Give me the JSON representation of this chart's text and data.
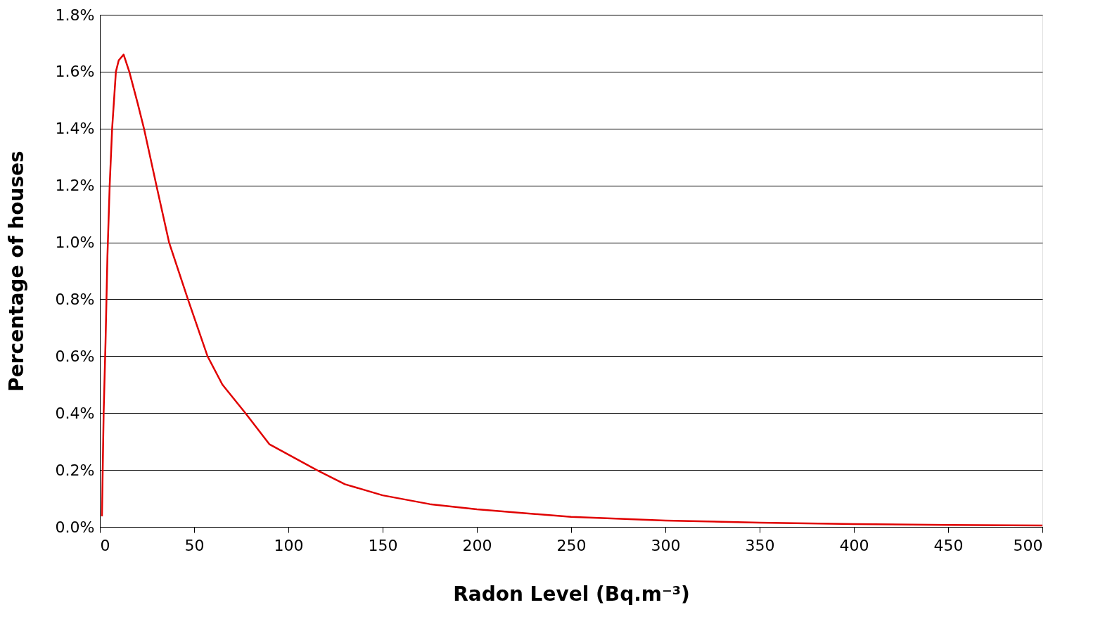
{
  "chart_data": {
    "type": "line",
    "xlabel": "Radon Level (Bq.m⁻³)",
    "ylabel": "Percentage of houses",
    "x": [
      1.1,
      1.5,
      2,
      3,
      4,
      5.2,
      6.5,
      8.5,
      10,
      12.6,
      15.6,
      20,
      23.4,
      30,
      36.7,
      46.7,
      57.1,
      65,
      77.2,
      90,
      115,
      130,
      150,
      175,
      200,
      250,
      300,
      350,
      400,
      450,
      500
    ],
    "series": [
      {
        "color": "#e00000",
        "values": [
          0.037,
          0.2,
          0.4,
          0.65,
          0.95,
          1.2,
          1.4,
          1.6,
          1.64,
          1.66,
          1.6,
          1.49,
          1.4,
          1.2,
          1.0,
          0.8,
          0.6,
          0.5,
          0.4,
          0.29,
          0.2,
          0.15,
          0.111,
          0.08,
          0.062,
          0.035,
          0.022,
          0.015,
          0.01,
          0.007,
          0.005
        ]
      }
    ],
    "xlim": [
      0,
      500
    ],
    "xticks": [
      0,
      50,
      100,
      150,
      200,
      250,
      300,
      350,
      400,
      450,
      500
    ],
    "ylim": [
      0,
      1.8
    ],
    "yticks": [
      {
        "value": 0,
        "label": "0.0%"
      },
      {
        "value": 0.2,
        "label": "0.2%"
      },
      {
        "value": 0.4,
        "label": "0.4%"
      },
      {
        "value": 0.6,
        "label": "0.6%"
      },
      {
        "value": 0.8,
        "label": "0.8%"
      },
      {
        "value": 1.0,
        "label": "1.0%"
      },
      {
        "value": 1.2,
        "label": "1.2%"
      },
      {
        "value": 1.4,
        "label": "1.4%"
      },
      {
        "value": 1.6,
        "label": "1.6%"
      },
      {
        "value": 1.8,
        "label": "1.8%"
      }
    ],
    "grid": "y",
    "line_style": "solid",
    "marker": "none"
  }
}
